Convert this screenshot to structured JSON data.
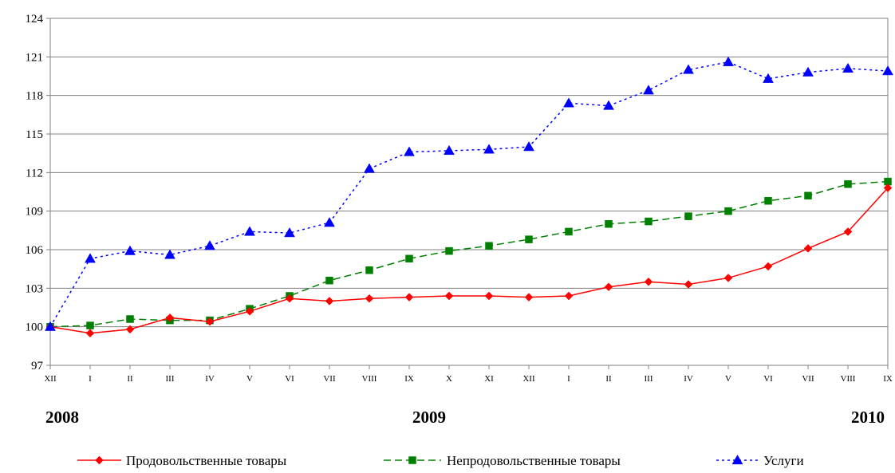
{
  "chart_data": {
    "type": "line",
    "title": "",
    "xlabel": "",
    "ylabel": "",
    "ylim": [
      97,
      124
    ],
    "yticks": [
      97,
      100,
      103,
      106,
      109,
      112,
      115,
      118,
      121,
      124
    ],
    "grid": true,
    "legend_position": "bottom",
    "categories": [
      "XII",
      "I",
      "II",
      "III",
      "IV",
      "V",
      "VI",
      "VII",
      "VIII",
      "IX",
      "X",
      "XI",
      "XII",
      "I",
      "II",
      "III",
      "IV",
      "V",
      "VI",
      "VII",
      "VIII",
      "IX"
    ],
    "year_labels": [
      {
        "label": "2008",
        "category_index": 0
      },
      {
        "label": "2009",
        "category_index": 9.5
      },
      {
        "label": "2010",
        "category_index": 20.5
      }
    ],
    "series": [
      {
        "name": "Продовольственные товары",
        "color": "#ff0000",
        "line_style": "solid",
        "marker": "diamond",
        "values": [
          100.0,
          99.5,
          99.8,
          100.7,
          100.4,
          101.2,
          102.2,
          102.0,
          102.2,
          102.3,
          102.4,
          102.4,
          102.3,
          102.4,
          103.1,
          103.5,
          103.3,
          103.8,
          104.7,
          106.1,
          107.4,
          110.8
        ]
      },
      {
        "name": "Непродовольственные товары",
        "color": "#008000",
        "line_style": "dashed",
        "marker": "square",
        "values": [
          100.0,
          100.1,
          100.6,
          100.5,
          100.5,
          101.4,
          102.4,
          103.6,
          104.4,
          105.3,
          105.9,
          106.3,
          106.8,
          107.4,
          108.0,
          108.2,
          108.6,
          109.0,
          109.8,
          110.2,
          111.1,
          111.3
        ]
      },
      {
        "name": "Услуги",
        "color": "#0000ff",
        "line_style": "dotted",
        "marker": "triangle",
        "values": [
          100.0,
          105.3,
          105.9,
          105.6,
          106.3,
          107.4,
          107.3,
          108.1,
          112.3,
          113.6,
          113.7,
          113.8,
          114.0,
          117.4,
          117.2,
          118.4,
          120.0,
          120.6,
          119.3,
          119.8,
          120.1,
          119.9
        ]
      }
    ]
  }
}
